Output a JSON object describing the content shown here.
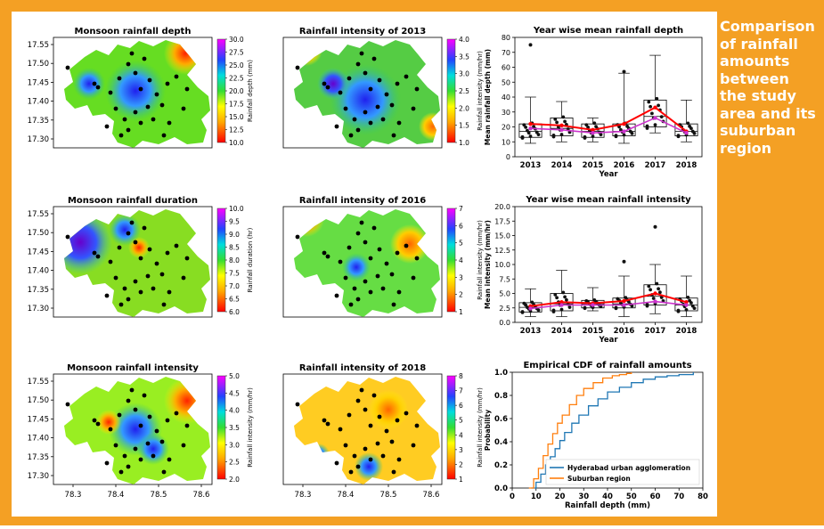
{
  "colors": {
    "frame": "#f4a024",
    "panel": "#ffffff",
    "side_text": "#ffffff"
  },
  "side_text": "Comparison\nof rainfall\namounts\nbetween\nthe study\narea and its\nsuburban\nregion",
  "lat_ticks": [
    "17.55",
    "17.50",
    "17.45",
    "17.40",
    "17.35",
    "17.30"
  ],
  "lon_ticks": [
    "78.3",
    "78.4",
    "78.5",
    "78.6"
  ],
  "maps": [
    {
      "title": "Monsoon rainfall depth",
      "cbar_label": "Rainfall depth (mm)",
      "cbar_ticks": [
        "30.0",
        "27.5",
        "25.0",
        "22.5",
        "20.0",
        "17.5",
        "15.0",
        "12.5",
        "10.0"
      ]
    },
    {
      "title": "Rainfall intensity of 2013",
      "cbar_label": "Rainfall intensity (mm/hr)",
      "cbar_ticks": [
        "4.0",
        "3.5",
        "3.0",
        "2.5",
        "2.0",
        "1.5",
        "1.0"
      ]
    },
    {
      "title": "Monsoon rainfall duration",
      "cbar_label": "Rainfall duration (hr)",
      "cbar_ticks": [
        "10.0",
        "9.5",
        "9.0",
        "8.5",
        "8.0",
        "7.5",
        "7.0",
        "6.5",
        "6.0"
      ]
    },
    {
      "title": "Rainfall intensity of 2016",
      "cbar_label": "Rainfall intensity (mm/hr)",
      "cbar_ticks": [
        "7",
        "6",
        "5",
        "4",
        "3",
        "2",
        "1"
      ]
    },
    {
      "title": "Monsoon rainfall intensity",
      "cbar_label": "Rainfall intensity (mm/hr)",
      "cbar_ticks": [
        "5.0",
        "4.5",
        "4.0",
        "3.5",
        "3.0",
        "2.5",
        "2.0"
      ]
    },
    {
      "title": "Rainfall intensity of 2018",
      "cbar_label": "Rainfall intensity (mm/hr)",
      "cbar_ticks": [
        "8",
        "7",
        "6",
        "5",
        "4",
        "3",
        "2",
        "1"
      ]
    }
  ],
  "chart_data": [
    {
      "type": "box",
      "title": "Year wise mean rainfall depth",
      "xlabel": "Year",
      "ylabel": "Mean rainfall depth (mm)",
      "ylim": [
        0,
        80
      ],
      "yticks": [
        0,
        10,
        20,
        30,
        40,
        50,
        60,
        70,
        80
      ],
      "categories": [
        "2013",
        "2014",
        "2015",
        "2016",
        "2017",
        "2018"
      ],
      "boxes": [
        [
          9,
          13,
          17,
          22,
          40
        ],
        [
          10,
          14,
          19,
          26,
          37
        ],
        [
          10,
          13,
          17,
          22,
          26
        ],
        [
          9,
          14,
          17,
          22,
          56
        ],
        [
          16,
          20,
          27,
          38,
          68
        ],
        [
          10,
          14,
          17,
          22,
          38
        ]
      ],
      "outliers": [
        [
          75
        ],
        [],
        [],
        [
          57
        ],
        [],
        []
      ],
      "series": [
        {
          "name": "",
          "color": "#ff0000",
          "values": [
            22,
            21,
            18,
            22,
            33,
            17
          ]
        },
        {
          "name": "",
          "color": "#cc33cc",
          "values": [
            19,
            18,
            16,
            17,
            26,
            16
          ]
        }
      ]
    },
    {
      "type": "box",
      "title": "Year wise mean rainfall intensity",
      "xlabel": "Year",
      "ylabel": "Mean intensity (mm/hr)",
      "ylim": [
        0,
        20
      ],
      "yticks": [
        0.0,
        2.5,
        5.0,
        7.5,
        10.0,
        12.5,
        15.0,
        17.5,
        20.0
      ],
      "categories": [
        "2013",
        "2014",
        "2015",
        "2016",
        "2017",
        "2018"
      ],
      "boxes": [
        [
          1,
          1.8,
          2.6,
          3.4,
          5.8
        ],
        [
          1,
          2,
          3.2,
          5,
          9
        ],
        [
          2,
          2.5,
          3.2,
          3.8,
          6
        ],
        [
          1,
          2.5,
          3.2,
          4.2,
          8
        ],
        [
          1.5,
          3,
          4.5,
          6.5,
          10
        ],
        [
          1,
          2,
          3,
          4.2,
          8
        ]
      ],
      "outliers": [
        [],
        [],
        [],
        [
          10.5
        ],
        [
          16.5
        ],
        []
      ],
      "series": [
        {
          "name": "",
          "color": "#ff0000",
          "values": [
            2.8,
            3.5,
            3.3,
            3.7,
            5.0,
            3.5
          ]
        },
        {
          "name": "",
          "color": "#cc33cc",
          "values": [
            2.4,
            3.0,
            3.0,
            3.0,
            3.6,
            3.0
          ]
        }
      ]
    },
    {
      "type": "line",
      "title": "Empirical CDF of rainfall amounts",
      "xlabel": "Rainfall depth (mm)",
      "ylabel": "Probability",
      "xlim": [
        0,
        80
      ],
      "ylim": [
        0,
        1
      ],
      "xticks": [
        0,
        10,
        20,
        30,
        40,
        50,
        60,
        70,
        80
      ],
      "yticks": [
        0.0,
        0.2,
        0.4,
        0.6,
        0.8,
        1.0
      ],
      "legend_position": "bottom-right",
      "series": [
        {
          "name": "Hyderabad urban agglomeration",
          "color": "#1f77b4",
          "x": [
            8,
            10,
            12,
            14,
            16,
            18,
            20,
            22,
            25,
            28,
            32,
            36,
            40,
            45,
            50,
            55,
            60,
            65,
            70,
            76
          ],
          "y": [
            0,
            0.05,
            0.12,
            0.2,
            0.27,
            0.34,
            0.41,
            0.48,
            0.56,
            0.63,
            0.71,
            0.77,
            0.83,
            0.87,
            0.91,
            0.94,
            0.96,
            0.97,
            0.98,
            1.0
          ]
        },
        {
          "name": "Suburban region",
          "color": "#ff7f0e",
          "x": [
            7,
            9,
            11,
            13,
            15,
            17,
            19,
            21,
            24,
            27,
            30,
            34,
            38,
            42,
            45,
            48,
            50
          ],
          "y": [
            0,
            0.08,
            0.17,
            0.28,
            0.38,
            0.47,
            0.56,
            0.63,
            0.72,
            0.8,
            0.86,
            0.91,
            0.95,
            0.97,
            0.98,
            0.99,
            1.0
          ]
        }
      ]
    }
  ]
}
